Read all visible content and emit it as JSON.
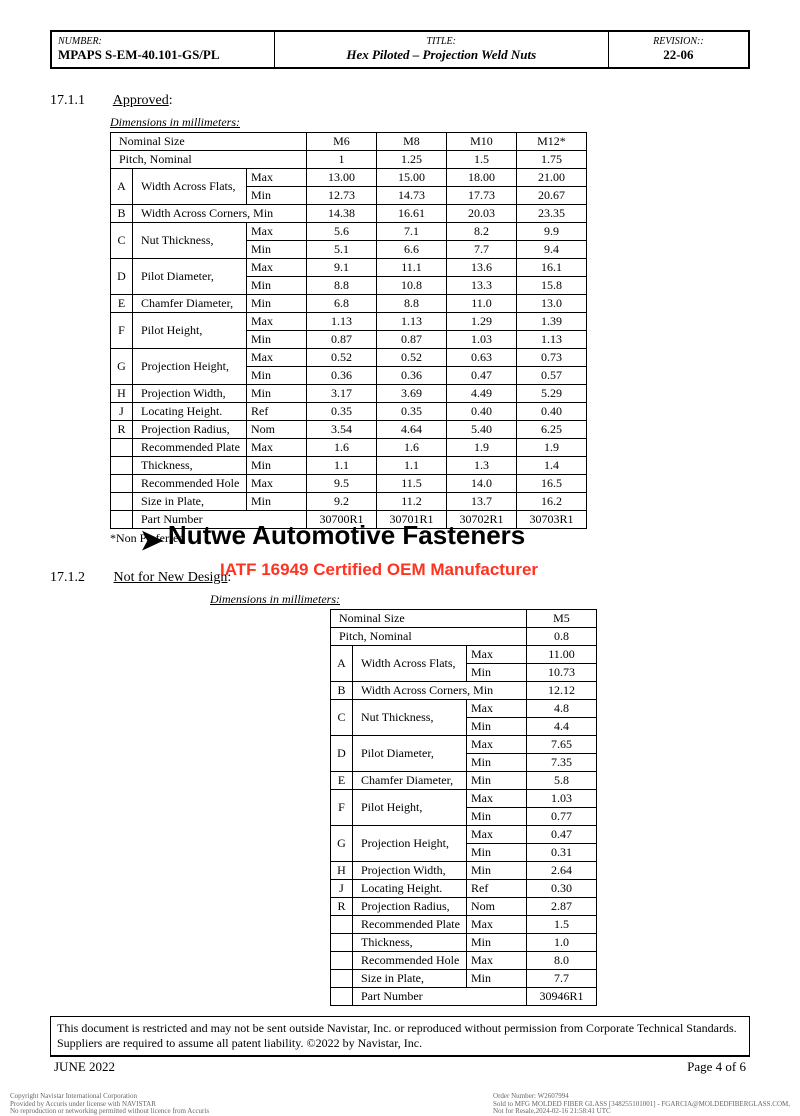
{
  "header": {
    "number_label": "NUMBER:",
    "number": "MPAPS S-EM-40.101-GS/PL",
    "title_label": "TITLE:",
    "title": "Hex Piloted – Projection Weld Nuts",
    "revision_label": "REVISION::",
    "revision": "22-06"
  },
  "section1": {
    "num": "17.1.1",
    "title": "Approved",
    "colon": ":",
    "dim_label": "Dimensions in millimeters:"
  },
  "table1": {
    "head": [
      "Nominal Size",
      "M6",
      "M8",
      "M10",
      "M12*"
    ],
    "pitch_label": "Pitch, Nominal",
    "pitch": [
      "1",
      "1.25",
      "1.5",
      "1.75"
    ],
    "rows": [
      {
        "code": "A",
        "name": "Width Across Flats,",
        "sub": [
          "Max",
          "Min"
        ],
        "v": [
          [
            "13.00",
            "15.00",
            "18.00",
            "21.00"
          ],
          [
            "12.73",
            "14.73",
            "17.73",
            "20.67"
          ]
        ]
      },
      {
        "code": "B",
        "name": "Width Across Corners, Min",
        "sub": null,
        "v": [
          [
            "14.38",
            "16.61",
            "20.03",
            "23.35"
          ]
        ]
      },
      {
        "code": "C",
        "name": "Nut Thickness,",
        "sub": [
          "Max",
          "Min"
        ],
        "v": [
          [
            "5.6",
            "7.1",
            "8.2",
            "9.9"
          ],
          [
            "5.1",
            "6.6",
            "7.7",
            "9.4"
          ]
        ]
      },
      {
        "code": "D",
        "name": "Pilot Diameter,",
        "sub": [
          "Max",
          "Min"
        ],
        "v": [
          [
            "9.1",
            "11.1",
            "13.6",
            "16.1"
          ],
          [
            "8.8",
            "10.8",
            "13.3",
            "15.8"
          ]
        ]
      },
      {
        "code": "E",
        "name": "Chamfer Diameter,",
        "sub": [
          "Min"
        ],
        "v": [
          [
            "6.8",
            "8.8",
            "11.0",
            "13.0"
          ]
        ]
      },
      {
        "code": "F",
        "name": "Pilot Height,",
        "sub": [
          "Max",
          "Min"
        ],
        "v": [
          [
            "1.13",
            "1.13",
            "1.29",
            "1.39"
          ],
          [
            "0.87",
            "0.87",
            "1.03",
            "1.13"
          ]
        ]
      },
      {
        "code": "G",
        "name": "Projection Height,",
        "sub": [
          "Max",
          "Min"
        ],
        "v": [
          [
            "0.52",
            "0.52",
            "0.63",
            "0.73"
          ],
          [
            "0.36",
            "0.36",
            "0.47",
            "0.57"
          ]
        ]
      },
      {
        "code": "H",
        "name": "Projection Width,",
        "sub": [
          "Min"
        ],
        "v": [
          [
            "3.17",
            "3.69",
            "4.49",
            "5.29"
          ]
        ]
      },
      {
        "code": "J",
        "name": "Locating Height.",
        "sub": [
          "Ref"
        ],
        "v": [
          [
            "0.35",
            "0.35",
            "0.40",
            "0.40"
          ]
        ]
      },
      {
        "code": "R",
        "name": "Projection Radius,",
        "sub": [
          "Nom"
        ],
        "v": [
          [
            "3.54",
            "4.64",
            "5.40",
            "6.25"
          ]
        ]
      }
    ],
    "extra_rows": [
      {
        "name": "Recommended Plate",
        "sub": [
          "Max"
        ],
        "v": [
          "1.6",
          "1.6",
          "1.9",
          "1.9"
        ]
      },
      {
        "name": "Thickness,",
        "sub": [
          "Min"
        ],
        "v": [
          "1.1",
          "1.1",
          "1.3",
          "1.4"
        ]
      },
      {
        "name": "Recommended Hole",
        "sub": [
          "Max"
        ],
        "v": [
          "9.5",
          "11.5",
          "14.0",
          "16.5"
        ]
      },
      {
        "name": "Size in Plate,",
        "sub": [
          "Min"
        ],
        "v": [
          "9.2",
          "11.2",
          "13.7",
          "16.2"
        ]
      }
    ],
    "partnum_label": "Part Number",
    "partnum": [
      "30700R1",
      "30701R1",
      "30702R1",
      "30703R1"
    ],
    "nonpreferred": "*Non Preferred"
  },
  "watermark": {
    "arrow": "➤",
    "line1": "Nutwe Automotive Fasteners",
    "line2": "IATF 16949 Certified OEM Manufacturer"
  },
  "section2": {
    "num": "17.1.2",
    "title": "Not for New Design",
    "colon": ":",
    "dim_label": "Dimensions in millimeters:"
  },
  "table2": {
    "head": [
      "Nominal Size",
      "M5"
    ],
    "pitch_label": "Pitch, Nominal",
    "pitch": [
      "0.8"
    ],
    "rows": [
      {
        "code": "A",
        "name": "Width Across Flats,",
        "sub": [
          "Max",
          "Min"
        ],
        "v": [
          [
            "11.00"
          ],
          [
            "10.73"
          ]
        ]
      },
      {
        "code": "B",
        "name": "Width Across Corners, Min",
        "sub": null,
        "v": [
          [
            "12.12"
          ]
        ]
      },
      {
        "code": "C",
        "name": "Nut Thickness,",
        "sub": [
          "Max",
          "Min"
        ],
        "v": [
          [
            "4.8"
          ],
          [
            "4.4"
          ]
        ]
      },
      {
        "code": "D",
        "name": "Pilot Diameter,",
        "sub": [
          "Max",
          "Min"
        ],
        "v": [
          [
            "7.65"
          ],
          [
            "7.35"
          ]
        ]
      },
      {
        "code": "E",
        "name": "Chamfer Diameter,",
        "sub": [
          "Min"
        ],
        "v": [
          [
            "5.8"
          ]
        ]
      },
      {
        "code": "F",
        "name": "Pilot Height,",
        "sub": [
          "Max",
          "Min"
        ],
        "v": [
          [
            "1.03"
          ],
          [
            "0.77"
          ]
        ]
      },
      {
        "code": "G",
        "name": "Projection Height,",
        "sub": [
          "Max",
          "Min"
        ],
        "v": [
          [
            "0.47"
          ],
          [
            "0.31"
          ]
        ]
      },
      {
        "code": "H",
        "name": "Projection Width,",
        "sub": [
          "Min"
        ],
        "v": [
          [
            "2.64"
          ]
        ]
      },
      {
        "code": "J",
        "name": "Locating Height.",
        "sub": [
          "Ref"
        ],
        "v": [
          [
            "0.30"
          ]
        ]
      },
      {
        "code": "R",
        "name": "Projection Radius,",
        "sub": [
          "Nom"
        ],
        "v": [
          [
            "2.87"
          ]
        ]
      }
    ],
    "extra_rows": [
      {
        "name": "Recommended Plate",
        "sub": [
          "Max"
        ],
        "v": [
          "1.5"
        ]
      },
      {
        "name": "Thickness,",
        "sub": [
          "Min"
        ],
        "v": [
          "1.0"
        ]
      },
      {
        "name": "Recommended Hole",
        "sub": [
          "Max"
        ],
        "v": [
          "8.0"
        ]
      },
      {
        "name": "Size in Plate,",
        "sub": [
          "Min"
        ],
        "v": [
          "7.7"
        ]
      }
    ],
    "partnum_label": "Part Number",
    "partnum": [
      "30946R1"
    ]
  },
  "restrict": "This document is restricted and may not be sent outside Navistar, Inc. or reproduced without permission from Corporate Technical Standards. Suppliers are required to assume all patent liability.  ©2022 by Navistar, Inc.",
  "footer": {
    "date": "JUNE 2022",
    "page": "Page 4 of 6"
  },
  "micro": {
    "left": "Copyright Navistar International Corporation\nProvided by Accuris under license with NAVISTAR\nNo reproduction or networking permitted without licence from Accuris",
    "right": "Order Number: W2607994\nSold to MFG MOLDED FIBER GLASS [348255101001] - FGARCIA@MOLDEDFIBERGLASS.COM,\nNot for Resale,2024-02-16 21:58:41 UTC"
  }
}
